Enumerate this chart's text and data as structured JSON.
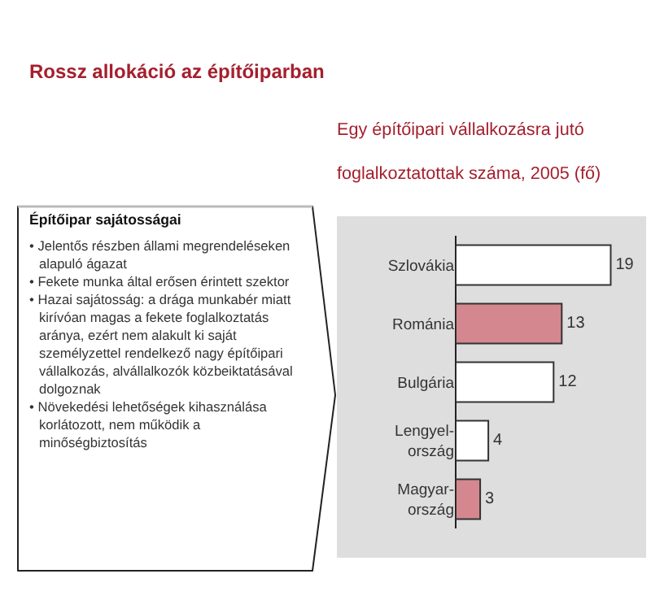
{
  "chart_data": [
    {
      "type": "other",
      "title": "Rossz allokáció az építőiparban",
      "subtitle": "Építőipar sajátosságai",
      "annotations": [
        "• Jelentős részben állami megrendeléseken alapuló ágazat",
        "• Fekete munka által erősen érintett szektor",
        "• Hazai sajátosság: a drága munkabér miatt kirívóan magas a fekete foglalkoztatás aránya, ezért nem alakult ki saját személyzettel rendelkező nagy építőipari vállalkozás, alvállalkozók közbeiktatásával dolgoznak",
        "• Növekedési lehetőségek kihasználása korlátozott, nem működik a minőségbiztosítás"
      ]
    },
    {
      "type": "bar",
      "title": "Egy építőipari vállalkozásra jutó foglalkoztatottak száma, 2005 (fő)",
      "orientation": "horizontal",
      "categories": [
        "Szlovákia",
        "Románia",
        "Bulgária",
        "Lengyel-ország",
        "Magyar-ország"
      ],
      "values": [
        19,
        13,
        12,
        4,
        3
      ],
      "colors": [
        "#ffffff",
        "#d4878f",
        "#ffffff",
        "#ffffff",
        "#d4878f"
      ],
      "data_labels": true,
      "tick_labels": "y"
    }
  ]
}
